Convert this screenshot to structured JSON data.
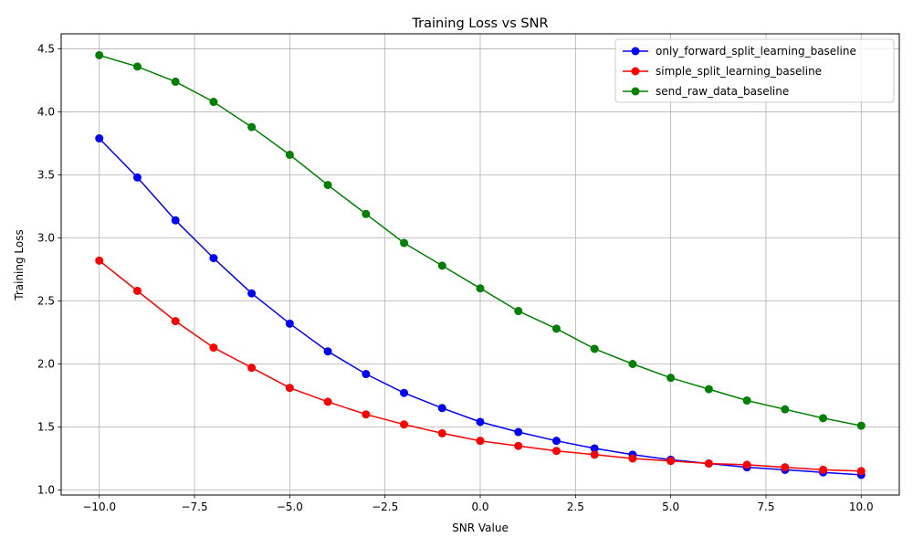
{
  "chart_data": {
    "type": "line",
    "title": "Training Loss vs SNR",
    "xlabel": "SNR Value",
    "ylabel": "Training Loss",
    "xlim": [
      -11,
      11
    ],
    "ylim": [
      0.96,
      4.62
    ],
    "x": [
      -10,
      -9,
      -8,
      -7,
      -6,
      -5,
      -4,
      -3,
      -2,
      -1,
      0,
      1,
      2,
      3,
      4,
      5,
      6,
      7,
      8,
      9,
      10
    ],
    "xticks": [
      -10.0,
      -7.5,
      -5.0,
      -2.5,
      0.0,
      2.5,
      5.0,
      7.5,
      10.0
    ],
    "xtick_labels": [
      "−10.0",
      "−7.5",
      "−5.0",
      "−2.5",
      "0.0",
      "2.5",
      "5.0",
      "7.5",
      "10.0"
    ],
    "yticks": [
      1.0,
      1.5,
      2.0,
      2.5,
      3.0,
      3.5,
      4.0,
      4.5
    ],
    "ytick_labels": [
      "1.0",
      "1.5",
      "2.0",
      "2.5",
      "3.0",
      "3.5",
      "4.0",
      "4.5"
    ],
    "grid": true,
    "legend_position": "top-right",
    "series": [
      {
        "name": "only_forward_split_learning_baseline",
        "color": "#0000ff",
        "values": [
          3.79,
          3.48,
          3.14,
          2.84,
          2.56,
          2.32,
          2.1,
          1.92,
          1.77,
          1.65,
          1.54,
          1.46,
          1.39,
          1.33,
          1.28,
          1.24,
          1.21,
          1.18,
          1.16,
          1.14,
          1.12
        ]
      },
      {
        "name": "simple_split_learning_baseline",
        "color": "#ff0000",
        "values": [
          2.82,
          2.58,
          2.34,
          2.13,
          1.97,
          1.81,
          1.7,
          1.6,
          1.52,
          1.45,
          1.39,
          1.35,
          1.31,
          1.28,
          1.25,
          1.23,
          1.21,
          1.2,
          1.18,
          1.16,
          1.15
        ]
      },
      {
        "name": "send_raw_data_baseline",
        "color": "#008000",
        "values": [
          4.45,
          4.36,
          4.24,
          4.08,
          3.88,
          3.66,
          3.42,
          3.19,
          2.96,
          2.78,
          2.6,
          2.42,
          2.28,
          2.12,
          2.0,
          1.89,
          1.8,
          1.71,
          1.64,
          1.57,
          1.51
        ]
      }
    ]
  }
}
